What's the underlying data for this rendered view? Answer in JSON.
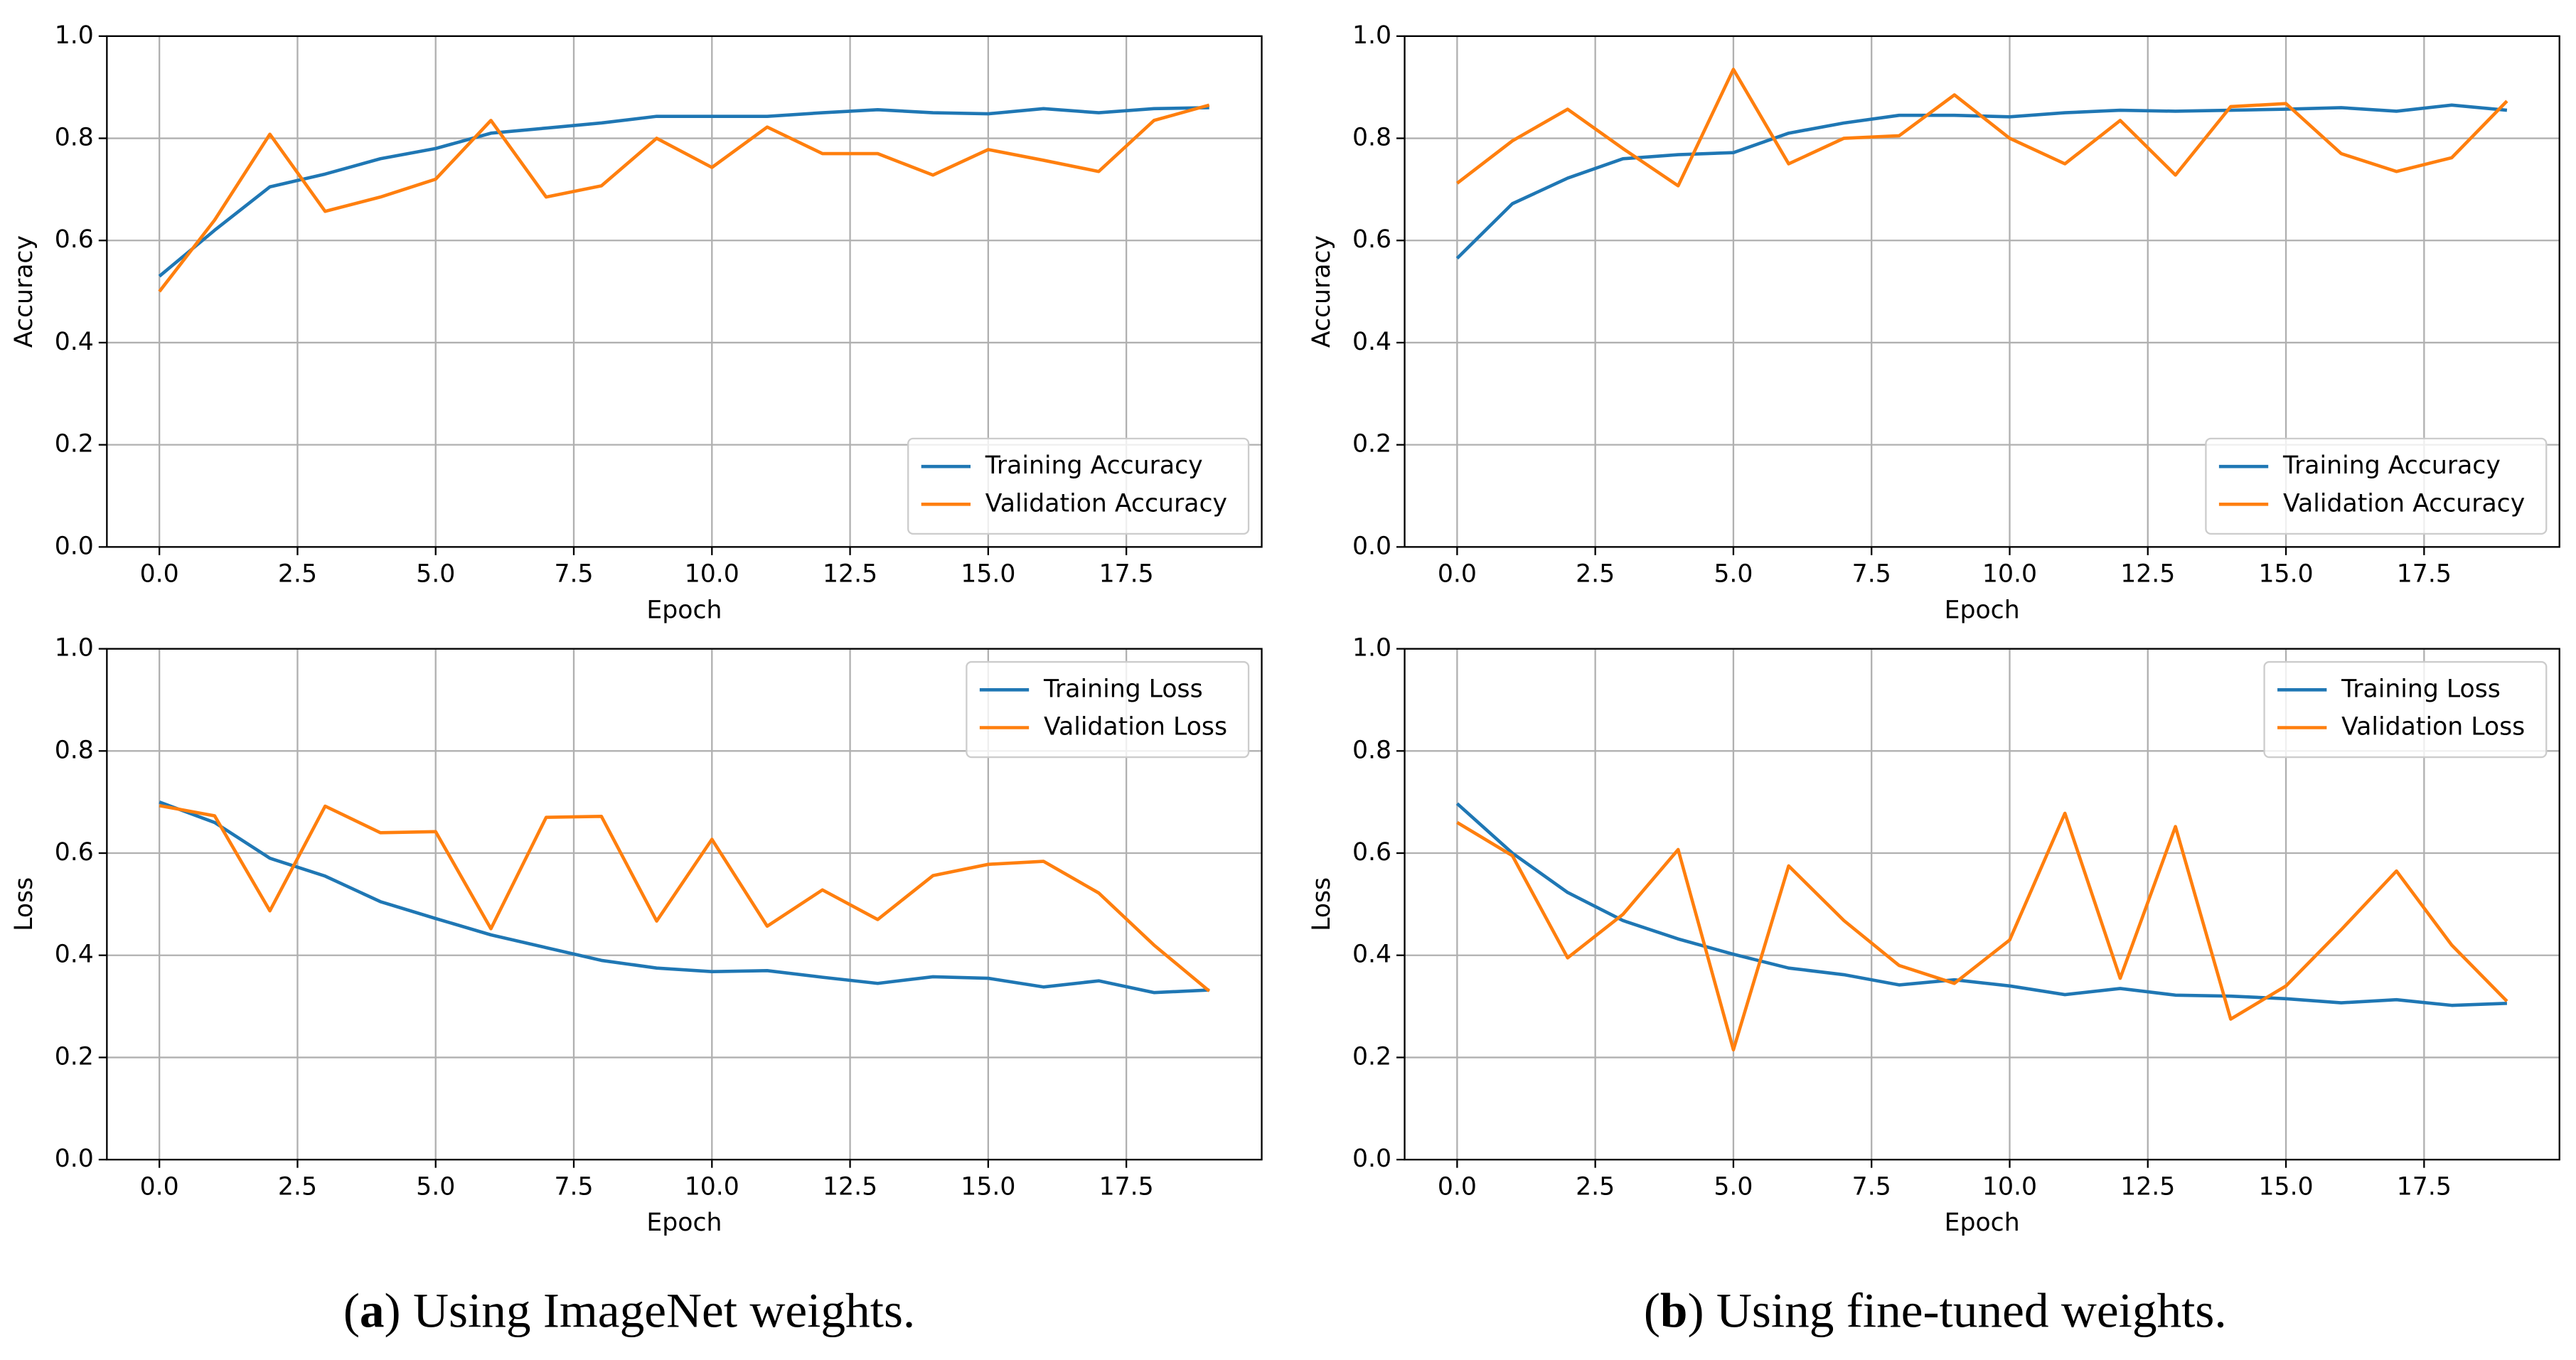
{
  "chart_data": [
    {
      "type": "line",
      "xlabel": "Epoch",
      "ylabel": "Accuracy",
      "x": [
        0,
        1,
        2,
        3,
        4,
        5,
        6,
        7,
        8,
        9,
        10,
        11,
        12,
        13,
        14,
        15,
        16,
        17,
        18,
        19
      ],
      "series": [
        {
          "name": "Training Accuracy",
          "color": "#1f77b4",
          "values": [
            0.53,
            0.62,
            0.705,
            0.73,
            0.76,
            0.78,
            0.81,
            0.82,
            0.83,
            0.843,
            0.843,
            0.843,
            0.85,
            0.856,
            0.85,
            0.848,
            0.858,
            0.85,
            0.858,
            0.86
          ]
        },
        {
          "name": "Validation Accuracy",
          "color": "#ff7f0e",
          "values": [
            0.5,
            0.64,
            0.808,
            0.657,
            0.685,
            0.72,
            0.835,
            0.685,
            0.707,
            0.8,
            0.743,
            0.822,
            0.77,
            0.77,
            0.728,
            0.778,
            0.757,
            0.735,
            0.835,
            0.865
          ]
        }
      ],
      "xlim": [
        -0.95,
        19.95
      ],
      "xticks": [
        {
          "value": 0,
          "label": "0.0"
        },
        2.5,
        {
          "value": 5,
          "label": "5.0"
        },
        7.5,
        {
          "value": 10,
          "label": "10.0"
        },
        12.5,
        {
          "value": 15,
          "label": "15.0"
        },
        17.5
      ],
      "ylim": [
        0,
        1
      ],
      "yticks": [
        {
          "value": 0,
          "label": "0.0"
        },
        0.2,
        0.4,
        0.6,
        0.8,
        {
          "value": 1,
          "label": "1.0"
        }
      ],
      "grid": true,
      "legend_loc": "lower-right"
    },
    {
      "type": "line",
      "xlabel": "Epoch",
      "ylabel": "Accuracy",
      "x": [
        0,
        1,
        2,
        3,
        4,
        5,
        6,
        7,
        8,
        9,
        10,
        11,
        12,
        13,
        14,
        15,
        16,
        17,
        18,
        19
      ],
      "series": [
        {
          "name": "Training Accuracy",
          "color": "#1f77b4",
          "values": [
            0.565,
            0.672,
            0.722,
            0.76,
            0.768,
            0.772,
            0.81,
            0.83,
            0.845,
            0.845,
            0.842,
            0.85,
            0.855,
            0.853,
            0.855,
            0.857,
            0.86,
            0.853,
            0.865,
            0.855
          ]
        },
        {
          "name": "Validation Accuracy",
          "color": "#ff7f0e",
          "values": [
            0.712,
            0.795,
            0.857,
            0.78,
            0.707,
            0.935,
            0.75,
            0.8,
            0.805,
            0.885,
            0.8,
            0.75,
            0.835,
            0.728,
            0.862,
            0.868,
            0.77,
            0.735,
            0.762,
            0.873
          ]
        }
      ],
      "xlim": [
        -0.95,
        19.95
      ],
      "xticks": [
        {
          "value": 0,
          "label": "0.0"
        },
        2.5,
        {
          "value": 5,
          "label": "5.0"
        },
        7.5,
        {
          "value": 10,
          "label": "10.0"
        },
        12.5,
        {
          "value": 15,
          "label": "15.0"
        },
        17.5
      ],
      "ylim": [
        0,
        1
      ],
      "yticks": [
        {
          "value": 0,
          "label": "0.0"
        },
        0.2,
        0.4,
        0.6,
        0.8,
        {
          "value": 1,
          "label": "1.0"
        }
      ],
      "grid": true,
      "legend_loc": "lower-right"
    },
    {
      "type": "line",
      "xlabel": "Epoch",
      "ylabel": "Loss",
      "x": [
        0,
        1,
        2,
        3,
        4,
        5,
        6,
        7,
        8,
        9,
        10,
        11,
        12,
        13,
        14,
        15,
        16,
        17,
        18,
        19
      ],
      "series": [
        {
          "name": "Training Loss",
          "color": "#1f77b4",
          "values": [
            0.7,
            0.66,
            0.59,
            0.555,
            0.505,
            0.472,
            0.44,
            0.415,
            0.39,
            0.375,
            0.368,
            0.37,
            0.357,
            0.345,
            0.358,
            0.355,
            0.338,
            0.35,
            0.327,
            0.332
          ]
        },
        {
          "name": "Validation Loss",
          "color": "#ff7f0e",
          "values": [
            0.693,
            0.673,
            0.487,
            0.692,
            0.64,
            0.642,
            0.452,
            0.67,
            0.672,
            0.467,
            0.627,
            0.457,
            0.528,
            0.47,
            0.556,
            0.578,
            0.584,
            0.522,
            0.42,
            0.33
          ]
        }
      ],
      "xlim": [
        -0.95,
        19.95
      ],
      "xticks": [
        {
          "value": 0,
          "label": "0.0"
        },
        2.5,
        {
          "value": 5,
          "label": "5.0"
        },
        7.5,
        {
          "value": 10,
          "label": "10.0"
        },
        12.5,
        {
          "value": 15,
          "label": "15.0"
        },
        17.5
      ],
      "ylim": [
        0,
        1
      ],
      "yticks": [
        {
          "value": 0,
          "label": "0.0"
        },
        0.2,
        0.4,
        0.6,
        0.8,
        {
          "value": 1,
          "label": "1.0"
        }
      ],
      "grid": true,
      "legend_loc": "upper-right"
    },
    {
      "type": "line",
      "xlabel": "Epoch",
      "ylabel": "Loss",
      "x": [
        0,
        1,
        2,
        3,
        4,
        5,
        6,
        7,
        8,
        9,
        10,
        11,
        12,
        13,
        14,
        15,
        16,
        17,
        18,
        19
      ],
      "series": [
        {
          "name": "Training Loss",
          "color": "#1f77b4",
          "values": [
            0.697,
            0.6,
            0.523,
            0.468,
            0.432,
            0.402,
            0.375,
            0.362,
            0.342,
            0.352,
            0.34,
            0.323,
            0.335,
            0.322,
            0.32,
            0.315,
            0.307,
            0.313,
            0.302,
            0.306
          ]
        },
        {
          "name": "Validation Loss",
          "color": "#ff7f0e",
          "values": [
            0.66,
            0.595,
            0.395,
            0.48,
            0.607,
            0.215,
            0.575,
            0.468,
            0.38,
            0.345,
            0.43,
            0.678,
            0.355,
            0.652,
            0.275,
            0.34,
            0.45,
            0.565,
            0.42,
            0.31
          ]
        }
      ],
      "xlim": [
        -0.95,
        19.95
      ],
      "xticks": [
        {
          "value": 0,
          "label": "0.0"
        },
        2.5,
        {
          "value": 5,
          "label": "5.0"
        },
        7.5,
        {
          "value": 10,
          "label": "10.0"
        },
        12.5,
        {
          "value": 15,
          "label": "15.0"
        },
        17.5
      ],
      "ylim": [
        0,
        1
      ],
      "yticks": [
        {
          "value": 0,
          "label": "0.0"
        },
        0.2,
        0.4,
        0.6,
        0.8,
        {
          "value": 1,
          "label": "1.0"
        }
      ],
      "grid": true,
      "legend_loc": "upper-right"
    }
  ],
  "captions": [
    [
      "(",
      "a",
      ") Using ImageNet weights."
    ],
    [
      "(",
      "b",
      ") Using fine-tuned weights."
    ]
  ]
}
